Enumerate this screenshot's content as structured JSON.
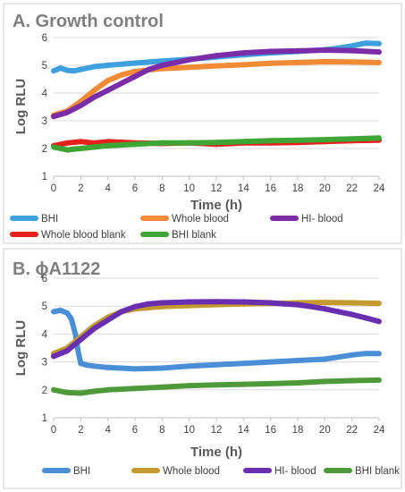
{
  "chart_data": [
    {
      "type": "line",
      "title": "A. Growth control",
      "xlabel": "Time (h)",
      "ylabel": "Log RLU",
      "xlim": [
        0,
        24
      ],
      "ylim": [
        1,
        6
      ],
      "xticks": [
        "0",
        "2",
        "4",
        "6",
        "8",
        "10",
        "12",
        "14",
        "16",
        "18",
        "20",
        "22",
        "24"
      ],
      "yticks": [
        "1",
        "2",
        "3",
        "4",
        "5",
        "6"
      ],
      "grid": "horizontal",
      "legend_position": "bottom",
      "series": [
        {
          "name": "BHI",
          "color": "#3ea0dc",
          "x": [
            0,
            0.5,
            1,
            1.5,
            2,
            3,
            4,
            6,
            8,
            10,
            12,
            14,
            16,
            18,
            20,
            21,
            22,
            23,
            24
          ],
          "y": [
            4.8,
            4.9,
            4.82,
            4.8,
            4.85,
            4.95,
            5.0,
            5.08,
            5.15,
            5.22,
            5.3,
            5.38,
            5.45,
            5.5,
            5.56,
            5.62,
            5.7,
            5.8,
            5.78
          ]
        },
        {
          "name": "Whole blood",
          "color": "#f28a36",
          "x": [
            0,
            1,
            2,
            3,
            4,
            5,
            6,
            8,
            10,
            12,
            14,
            16,
            18,
            20,
            22,
            24
          ],
          "y": [
            3.2,
            3.35,
            3.7,
            4.1,
            4.45,
            4.65,
            4.78,
            4.88,
            4.93,
            4.98,
            5.02,
            5.07,
            5.1,
            5.13,
            5.12,
            5.1
          ]
        },
        {
          "name": "HI- blood",
          "color": "#7b2da8",
          "x": [
            0,
            1,
            2,
            3,
            4,
            5,
            6,
            7,
            8,
            9,
            10,
            12,
            14,
            16,
            18,
            20,
            22,
            24
          ],
          "y": [
            3.15,
            3.3,
            3.55,
            3.85,
            4.1,
            4.35,
            4.6,
            4.85,
            5.0,
            5.1,
            5.2,
            5.35,
            5.45,
            5.5,
            5.52,
            5.55,
            5.53,
            5.48
          ]
        },
        {
          "name": "Whole blood blank",
          "color": "#e4211c",
          "x": [
            0,
            1,
            2,
            3,
            4,
            6,
            8,
            10,
            12,
            14,
            16,
            18,
            20,
            22,
            24
          ],
          "y": [
            2.1,
            2.2,
            2.25,
            2.2,
            2.25,
            2.2,
            2.18,
            2.2,
            2.15,
            2.2,
            2.2,
            2.22,
            2.25,
            2.28,
            2.3
          ]
        },
        {
          "name": "BHI blank",
          "color": "#3fa535",
          "x": [
            0,
            0.5,
            1,
            1.5,
            2,
            3,
            4,
            6,
            8,
            10,
            12,
            14,
            16,
            18,
            20,
            22,
            24
          ],
          "y": [
            2.05,
            2.0,
            1.95,
            1.98,
            2.0,
            2.05,
            2.1,
            2.15,
            2.2,
            2.2,
            2.22,
            2.25,
            2.28,
            2.3,
            2.32,
            2.35,
            2.38
          ]
        }
      ]
    },
    {
      "type": "line",
      "title": "B. ϕA1122",
      "xlabel": "Time (h)",
      "ylabel": "Log RLU",
      "xlim": [
        0,
        24
      ],
      "ylim": [
        1,
        6
      ],
      "xticks": [
        "0",
        "2",
        "4",
        "6",
        "8",
        "10",
        "12",
        "14",
        "16",
        "18",
        "20",
        "22",
        "24"
      ],
      "yticks": [
        "1",
        "2",
        "3",
        "4",
        "5",
        "6"
      ],
      "grid": "horizontal",
      "legend_position": "bottom",
      "series": [
        {
          "name": "BHI",
          "color": "#4a8fd6",
          "x": [
            0,
            0.5,
            1,
            1.3,
            1.6,
            1.8,
            2,
            2.5,
            3,
            4,
            5,
            6,
            8,
            10,
            12,
            14,
            16,
            18,
            20,
            22,
            23,
            24
          ],
          "y": [
            4.8,
            4.85,
            4.75,
            4.55,
            4.0,
            3.4,
            2.95,
            2.88,
            2.85,
            2.8,
            2.78,
            2.75,
            2.78,
            2.85,
            2.9,
            2.95,
            3.0,
            3.05,
            3.1,
            3.25,
            3.3,
            3.3
          ]
        },
        {
          "name": "Whole blood",
          "color": "#c49a2e",
          "x": [
            0,
            1,
            2,
            3,
            4,
            5,
            6,
            8,
            10,
            12,
            14,
            16,
            18,
            20,
            22,
            24
          ],
          "y": [
            3.3,
            3.5,
            3.9,
            4.3,
            4.6,
            4.8,
            4.9,
            4.98,
            5.02,
            5.05,
            5.08,
            5.1,
            5.12,
            5.13,
            5.12,
            5.1
          ]
        },
        {
          "name": "HI- blood",
          "color": "#6a2fb0",
          "x": [
            0,
            1,
            2,
            3,
            4,
            5,
            6,
            7,
            8,
            10,
            12,
            14,
            16,
            17,
            18,
            19,
            20,
            21,
            22,
            23,
            24
          ],
          "y": [
            3.2,
            3.4,
            3.8,
            4.2,
            4.5,
            4.8,
            4.98,
            5.08,
            5.12,
            5.15,
            5.16,
            5.15,
            5.12,
            5.08,
            5.05,
            4.98,
            4.9,
            4.8,
            4.7,
            4.58,
            4.45
          ]
        },
        {
          "name": "BHI blank",
          "color": "#4e9a3a",
          "x": [
            0,
            1,
            2,
            3,
            4,
            6,
            8,
            10,
            12,
            14,
            16,
            18,
            20,
            22,
            24
          ],
          "y": [
            2.0,
            1.9,
            1.88,
            1.95,
            2.0,
            2.05,
            2.1,
            2.15,
            2.18,
            2.2,
            2.22,
            2.25,
            2.3,
            2.33,
            2.35
          ]
        }
      ]
    }
  ]
}
